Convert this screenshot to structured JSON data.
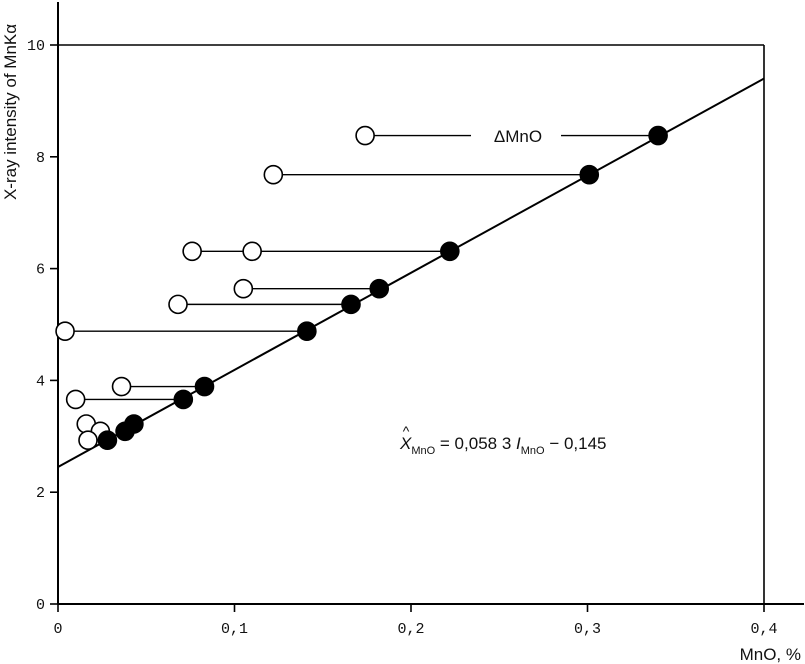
{
  "chart_data": {
    "type": "scatter",
    "xlabel": "MnO, %",
    "ylabel": "X-ray intensity of MnKα",
    "xlim": [
      0,
      0.42
    ],
    "ylim": [
      0,
      10.5
    ],
    "x_ticks": [
      "0",
      "0,1",
      "0,2",
      "0,3",
      "0,4"
    ],
    "x_tick_values": [
      0,
      0.1,
      0.2,
      0.3,
      0.4
    ],
    "y_ticks": [
      "0",
      "2",
      "4",
      "6",
      "8",
      "10"
    ],
    "y_tick_values": [
      0,
      2,
      4,
      6,
      8,
      10
    ],
    "grid": false,
    "reference_box": {
      "x_max": 0.4,
      "y_max": 10
    },
    "series": [
      {
        "marker": "open-circle",
        "points": [
          {
            "x": 0.174,
            "y": 8.38
          },
          {
            "x": 0.122,
            "y": 7.68
          },
          {
            "x": 0.076,
            "y": 6.31
          },
          {
            "x": 0.11,
            "y": 6.31
          },
          {
            "x": 0.068,
            "y": 5.36
          },
          {
            "x": 0.105,
            "y": 5.64
          },
          {
            "x": 0.004,
            "y": 4.88
          },
          {
            "x": 0.036,
            "y": 3.89
          },
          {
            "x": 0.01,
            "y": 3.66
          },
          {
            "x": 0.016,
            "y": 3.22
          },
          {
            "x": 0.024,
            "y": 3.09
          },
          {
            "x": 0.017,
            "y": 2.93
          }
        ]
      },
      {
        "marker": "filled-circle",
        "points": [
          {
            "x": 0.34,
            "y": 8.38
          },
          {
            "x": 0.301,
            "y": 7.68
          },
          {
            "x": 0.222,
            "y": 6.31
          },
          {
            "x": 0.182,
            "y": 5.64
          },
          {
            "x": 0.166,
            "y": 5.36
          },
          {
            "x": 0.141,
            "y": 4.88
          },
          {
            "x": 0.083,
            "y": 3.89
          },
          {
            "x": 0.071,
            "y": 3.66
          },
          {
            "x": 0.043,
            "y": 3.22
          },
          {
            "x": 0.038,
            "y": 3.09
          },
          {
            "x": 0.028,
            "y": 2.93
          }
        ]
      }
    ],
    "connectors": [
      {
        "x1": 0.174,
        "x2": 0.34,
        "y": 8.38,
        "gap": [
          0.234,
          0.285
        ]
      },
      {
        "x1": 0.122,
        "x2": 0.301,
        "y": 7.68
      },
      {
        "x1": 0.076,
        "x2": 0.222,
        "y": 6.31
      },
      {
        "x1": 0.105,
        "x2": 0.182,
        "y": 5.64
      },
      {
        "x1": 0.068,
        "x2": 0.166,
        "y": 5.36
      },
      {
        "x1": 0.004,
        "x2": 0.141,
        "y": 4.88
      },
      {
        "x1": 0.036,
        "x2": 0.083,
        "y": 3.89
      },
      {
        "x1": 0.01,
        "x2": 0.071,
        "y": 3.66
      }
    ],
    "regression_line": {
      "start": {
        "x": 0,
        "y": 2.45
      },
      "end": {
        "x": 0.4,
        "y": 9.4
      }
    },
    "annotations": {
      "delta_label": "ΔMnO",
      "equation": {
        "hat_var": "X",
        "hat_mark": "^",
        "sub1": "MnO",
        "mid": " = 0,058 3 ",
        "var2": "I",
        "sub2": "MnO",
        "tail": " − 0,145"
      }
    }
  }
}
